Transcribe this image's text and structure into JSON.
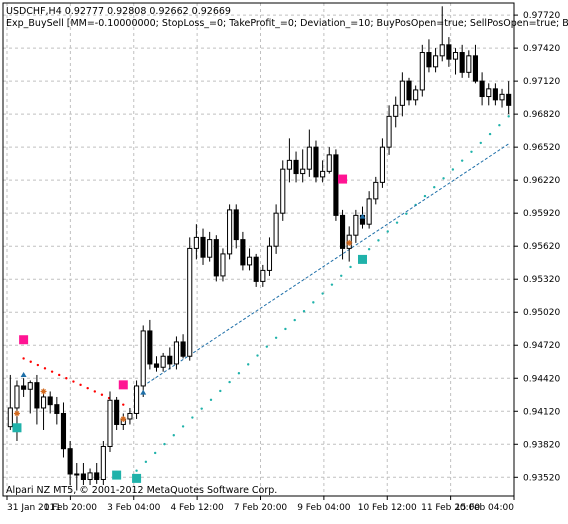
{
  "header": {
    "symbol_line": "USDCHF,H4  0.92777 0.92808 0.92662 0.92669",
    "indicator_line": "Exp_BuySell [MM=-0.10000000; StopLoss_=0; TakeProfit_=0; Deviation_=10; BuyPosOpen=true; SellPosOpen=true; Bu"
  },
  "footer": {
    "copyright": "Alpari NZ MT5, © 2001-2012 MetaQuotes Software Corp."
  },
  "colors": {
    "background": "#ffffff",
    "grid": "#c0c0c0",
    "bull_candle": "#ffffff",
    "bear_candle": "#000000",
    "sell_signal": "#ff1493",
    "buy_signal": "#20b2aa",
    "trail_sell": "#ff0000",
    "trail_buy": "#20b2aa",
    "trend_line": "#1e6fa8"
  },
  "chart_data": {
    "type": "candlestick",
    "symbol": "USDCHF",
    "timeframe": "H4",
    "ylim": [
      0.9335,
      0.9783
    ],
    "y_ticks": [
      "0.97720",
      "0.97420",
      "0.97120",
      "0.96820",
      "0.96520",
      "0.96220",
      "0.95920",
      "0.95620",
      "0.95320",
      "0.95020",
      "0.94720",
      "0.94420",
      "0.94120",
      "0.93820",
      "0.93520"
    ],
    "x_ticks": [
      "31 Jan 2011",
      "1 Feb 20:00",
      "3 Feb 04:00",
      "4 Feb 12:00",
      "7 Feb 20:00",
      "9 Feb 04:00",
      "10 Feb 12:00",
      "11 Feb 20:00",
      "15 Feb 04:00"
    ],
    "candles": [
      {
        "o": 0.9398,
        "h": 0.9445,
        "l": 0.9395,
        "c": 0.9415
      },
      {
        "o": 0.9415,
        "h": 0.944,
        "l": 0.9385,
        "c": 0.9435
      },
      {
        "o": 0.9435,
        "h": 0.9442,
        "l": 0.9425,
        "c": 0.9432
      },
      {
        "o": 0.9432,
        "h": 0.944,
        "l": 0.941,
        "c": 0.9438
      },
      {
        "o": 0.9438,
        "h": 0.9445,
        "l": 0.94,
        "c": 0.9415
      },
      {
        "o": 0.9415,
        "h": 0.943,
        "l": 0.9395,
        "c": 0.9425
      },
      {
        "o": 0.9425,
        "h": 0.943,
        "l": 0.941,
        "c": 0.9418
      },
      {
        "o": 0.9418,
        "h": 0.9425,
        "l": 0.94,
        "c": 0.941
      },
      {
        "o": 0.941,
        "h": 0.942,
        "l": 0.937,
        "c": 0.9378
      },
      {
        "o": 0.9378,
        "h": 0.9385,
        "l": 0.9345,
        "c": 0.9355
      },
      {
        "o": 0.9355,
        "h": 0.9365,
        "l": 0.934,
        "c": 0.9355
      },
      {
        "o": 0.9355,
        "h": 0.9365,
        "l": 0.9345,
        "c": 0.935
      },
      {
        "o": 0.935,
        "h": 0.936,
        "l": 0.9345,
        "c": 0.9356
      },
      {
        "o": 0.9356,
        "h": 0.9365,
        "l": 0.9346,
        "c": 0.935
      },
      {
        "o": 0.935,
        "h": 0.9385,
        "l": 0.9345,
        "c": 0.938
      },
      {
        "o": 0.938,
        "h": 0.943,
        "l": 0.9375,
        "c": 0.9422
      },
      {
        "o": 0.9422,
        "h": 0.9425,
        "l": 0.9395,
        "c": 0.94
      },
      {
        "o": 0.94,
        "h": 0.941,
        "l": 0.9395,
        "c": 0.9405
      },
      {
        "o": 0.9405,
        "h": 0.9415,
        "l": 0.94,
        "c": 0.941
      },
      {
        "o": 0.941,
        "h": 0.944,
        "l": 0.9405,
        "c": 0.9435
      },
      {
        "o": 0.9435,
        "h": 0.949,
        "l": 0.9425,
        "c": 0.9485
      },
      {
        "o": 0.9485,
        "h": 0.9495,
        "l": 0.945,
        "c": 0.9455
      },
      {
        "o": 0.9455,
        "h": 0.9462,
        "l": 0.9448,
        "c": 0.9452
      },
      {
        "o": 0.9452,
        "h": 0.9465,
        "l": 0.9448,
        "c": 0.9462
      },
      {
        "o": 0.9462,
        "h": 0.947,
        "l": 0.945,
        "c": 0.9455
      },
      {
        "o": 0.9455,
        "h": 0.948,
        "l": 0.945,
        "c": 0.9475
      },
      {
        "o": 0.9475,
        "h": 0.9482,
        "l": 0.946,
        "c": 0.9462
      },
      {
        "o": 0.9462,
        "h": 0.957,
        "l": 0.9458,
        "c": 0.956
      },
      {
        "o": 0.956,
        "h": 0.9582,
        "l": 0.955,
        "c": 0.957
      },
      {
        "o": 0.957,
        "h": 0.9578,
        "l": 0.9545,
        "c": 0.9552
      },
      {
        "o": 0.9552,
        "h": 0.9575,
        "l": 0.9548,
        "c": 0.9568
      },
      {
        "o": 0.9568,
        "h": 0.9572,
        "l": 0.953,
        "c": 0.9535
      },
      {
        "o": 0.9535,
        "h": 0.956,
        "l": 0.953,
        "c": 0.9555
      },
      {
        "o": 0.9555,
        "h": 0.96,
        "l": 0.955,
        "c": 0.9595
      },
      {
        "o": 0.9595,
        "h": 0.96,
        "l": 0.956,
        "c": 0.9568
      },
      {
        "o": 0.9568,
        "h": 0.9575,
        "l": 0.954,
        "c": 0.9545
      },
      {
        "o": 0.9545,
        "h": 0.956,
        "l": 0.954,
        "c": 0.9552
      },
      {
        "o": 0.9552,
        "h": 0.9555,
        "l": 0.9525,
        "c": 0.953
      },
      {
        "o": 0.953,
        "h": 0.9545,
        "l": 0.9525,
        "c": 0.954
      },
      {
        "o": 0.954,
        "h": 0.957,
        "l": 0.9535,
        "c": 0.9562
      },
      {
        "o": 0.9562,
        "h": 0.96,
        "l": 0.9555,
        "c": 0.9592
      },
      {
        "o": 0.9592,
        "h": 0.964,
        "l": 0.9585,
        "c": 0.9632
      },
      {
        "o": 0.9632,
        "h": 0.966,
        "l": 0.962,
        "c": 0.964
      },
      {
        "o": 0.964,
        "h": 0.9648,
        "l": 0.962,
        "c": 0.9628
      },
      {
        "o": 0.9628,
        "h": 0.965,
        "l": 0.962,
        "c": 0.9632
      },
      {
        "o": 0.9632,
        "h": 0.9668,
        "l": 0.9625,
        "c": 0.9652
      },
      {
        "o": 0.9652,
        "h": 0.9658,
        "l": 0.962,
        "c": 0.9625
      },
      {
        "o": 0.9625,
        "h": 0.964,
        "l": 0.962,
        "c": 0.963
      },
      {
        "o": 0.963,
        "h": 0.9652,
        "l": 0.9628,
        "c": 0.9645
      },
      {
        "o": 0.9645,
        "h": 0.965,
        "l": 0.9585,
        "c": 0.959
      },
      {
        "o": 0.959,
        "h": 0.9595,
        "l": 0.955,
        "c": 0.956
      },
      {
        "o": 0.956,
        "h": 0.958,
        "l": 0.9548,
        "c": 0.9572
      },
      {
        "o": 0.9572,
        "h": 0.9595,
        "l": 0.9565,
        "c": 0.959
      },
      {
        "o": 0.959,
        "h": 0.9598,
        "l": 0.9578,
        "c": 0.9582
      },
      {
        "o": 0.9582,
        "h": 0.9612,
        "l": 0.9578,
        "c": 0.9605
      },
      {
        "o": 0.9605,
        "h": 0.9625,
        "l": 0.96,
        "c": 0.962
      },
      {
        "o": 0.962,
        "h": 0.966,
        "l": 0.9615,
        "c": 0.9652
      },
      {
        "o": 0.9652,
        "h": 0.969,
        "l": 0.9645,
        "c": 0.968
      },
      {
        "o": 0.968,
        "h": 0.9698,
        "l": 0.967,
        "c": 0.969
      },
      {
        "o": 0.969,
        "h": 0.972,
        "l": 0.968,
        "c": 0.9712
      },
      {
        "o": 0.9712,
        "h": 0.9715,
        "l": 0.969,
        "c": 0.9695
      },
      {
        "o": 0.9695,
        "h": 0.9708,
        "l": 0.969,
        "c": 0.9704
      },
      {
        "o": 0.9704,
        "h": 0.9745,
        "l": 0.9698,
        "c": 0.9738
      },
      {
        "o": 0.9738,
        "h": 0.975,
        "l": 0.972,
        "c": 0.9725
      },
      {
        "o": 0.9725,
        "h": 0.9742,
        "l": 0.972,
        "c": 0.9735
      },
      {
        "o": 0.9735,
        "h": 0.978,
        "l": 0.973,
        "c": 0.9745
      },
      {
        "o": 0.9745,
        "h": 0.9752,
        "l": 0.9725,
        "c": 0.9732
      },
      {
        "o": 0.9732,
        "h": 0.9742,
        "l": 0.9718,
        "c": 0.9738
      },
      {
        "o": 0.9738,
        "h": 0.9745,
        "l": 0.9715,
        "c": 0.972
      },
      {
        "o": 0.972,
        "h": 0.974,
        "l": 0.9715,
        "c": 0.9735
      },
      {
        "o": 0.9735,
        "h": 0.9745,
        "l": 0.971,
        "c": 0.9712
      },
      {
        "o": 0.9712,
        "h": 0.972,
        "l": 0.969,
        "c": 0.9698
      },
      {
        "o": 0.9698,
        "h": 0.971,
        "l": 0.969,
        "c": 0.9705
      },
      {
        "o": 0.9705,
        "h": 0.971,
        "l": 0.969,
        "c": 0.9695
      },
      {
        "o": 0.9695,
        "h": 0.9705,
        "l": 0.9688,
        "c": 0.97
      },
      {
        "o": 0.97,
        "h": 0.9712,
        "l": 0.9682,
        "c": 0.969
      }
    ],
    "signals": [
      {
        "type": "sell",
        "index": 2,
        "price": 0.9477
      },
      {
        "type": "buy",
        "index": 1,
        "price": 0.9397
      },
      {
        "type": "sell",
        "index": 17,
        "price": 0.9436
      },
      {
        "type": "buy",
        "index": 16,
        "price": 0.9354
      },
      {
        "type": "buy",
        "index": 19,
        "price": 0.9351
      },
      {
        "type": "sell",
        "index": 50,
        "price": 0.9623
      },
      {
        "type": "buy",
        "index": 53,
        "price": 0.955
      }
    ],
    "trail_sell": {
      "start_index": 2,
      "start_price": 0.946,
      "end_index": 17,
      "end_price": 0.9418
    },
    "trail_buy": {
      "start_index": 19,
      "start_price": 0.9358,
      "end_index": 75,
      "end_price": 0.968
    },
    "trend_line": {
      "start_index": 20,
      "start_price": 0.9435,
      "end_index": 75,
      "end_price": 0.9655
    },
    "entry_marks": [
      {
        "index": 2,
        "price": 0.9444,
        "kind": "arrow"
      },
      {
        "index": 1,
        "price": 0.941,
        "kind": "star"
      },
      {
        "index": 5,
        "price": 0.943,
        "kind": "star"
      },
      {
        "index": 17,
        "price": 0.9405,
        "kind": "star"
      },
      {
        "index": 20,
        "price": 0.9428,
        "kind": "arrow"
      },
      {
        "index": 51,
        "price": 0.9565,
        "kind": "star"
      },
      {
        "index": 53,
        "price": 0.9588,
        "kind": "arrow"
      }
    ]
  }
}
